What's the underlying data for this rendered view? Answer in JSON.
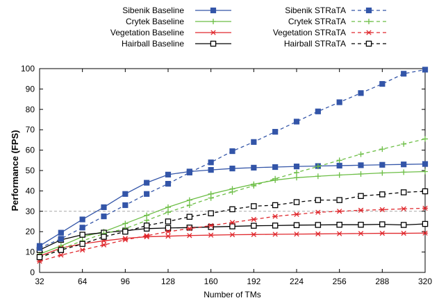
{
  "chart_data": {
    "type": "line",
    "title": "",
    "xlabel": "Number of TMs",
    "ylabel": "Performance (FPS)",
    "xlim": [
      32,
      320
    ],
    "ylim": [
      0,
      100
    ],
    "x_ticks": [
      32,
      64,
      96,
      128,
      160,
      192,
      224,
      256,
      288,
      320
    ],
    "y_ticks": [
      0,
      10,
      20,
      30,
      40,
      50,
      60,
      70,
      80,
      90,
      100
    ],
    "reference_line_y": 30,
    "legend_placement": "top, above plot, two columns",
    "x": [
      32,
      48,
      64,
      80,
      96,
      112,
      128,
      144,
      160,
      176,
      192,
      208,
      224,
      240,
      256,
      272,
      288,
      304,
      320
    ],
    "series": [
      {
        "name": "Sibenik Baseline",
        "color": "#3355a8",
        "style": "solid",
        "marker": "square-filled",
        "values": [
          13,
          19.5,
          26,
          32,
          38.5,
          44,
          48,
          49.5,
          50.3,
          51,
          51.4,
          51.7,
          52,
          52.2,
          52.4,
          52.6,
          52.8,
          53,
          53.2
        ]
      },
      {
        "name": "Crytek Baseline",
        "color": "#6cbe45",
        "style": "solid",
        "marker": "plus",
        "values": [
          9,
          13,
          17.5,
          20,
          24,
          28,
          32,
          35.5,
          38.5,
          41,
          43.3,
          45.3,
          46.5,
          47.2,
          47.8,
          48.3,
          48.8,
          49.2,
          49.5
        ]
      },
      {
        "name": "Vegetation Baseline",
        "color": "#e0282d",
        "style": "solid",
        "marker": "asterisk",
        "values": [
          8,
          12,
          14,
          15.5,
          16.7,
          17.5,
          17.8,
          18.1,
          18.3,
          18.5,
          18.6,
          18.7,
          18.8,
          18.9,
          19,
          19.1,
          19.2,
          19.2,
          19.3
        ]
      },
      {
        "name": "Hairball Baseline",
        "color": "#000000",
        "style": "solid",
        "marker": "square-open",
        "values": [
          11,
          16,
          18.5,
          19.5,
          20.5,
          21.5,
          21.8,
          22,
          22.3,
          22.6,
          22.9,
          23,
          23.2,
          23.3,
          23.4,
          23.4,
          23.6,
          23.3,
          23.8
        ]
      },
      {
        "name": "Sibenik STRaTA",
        "color": "#3355a8",
        "style": "dashed",
        "marker": "square-filled",
        "values": [
          12,
          16.5,
          22,
          27.5,
          33,
          38.5,
          43.5,
          49,
          54,
          59.5,
          64,
          69,
          74,
          79,
          83.5,
          88,
          92.5,
          97.5,
          99.5
        ]
      },
      {
        "name": "Crytek STRaTA",
        "color": "#6cbe45",
        "style": "dashed",
        "marker": "plus",
        "values": [
          7,
          11.5,
          15.5,
          19,
          21.5,
          25.5,
          29.5,
          33,
          36.5,
          39.5,
          42.5,
          46,
          49,
          52,
          55,
          58,
          60.5,
          63,
          65.5
        ]
      },
      {
        "name": "Vegetation STRaTA",
        "color": "#e0282d",
        "style": "dashed",
        "marker": "asterisk",
        "values": [
          5.5,
          8.5,
          11,
          13.5,
          16,
          18,
          20,
          21.5,
          23,
          24.5,
          26,
          27.5,
          28.5,
          29.5,
          30,
          30.5,
          30.8,
          31.2,
          31.5
        ]
      },
      {
        "name": "Hairball STRaTA",
        "color": "#000000",
        "style": "dashed",
        "marker": "square-open",
        "values": [
          7.5,
          11,
          14,
          17.5,
          20,
          23,
          25,
          27.3,
          29,
          31,
          32.5,
          33,
          34.5,
          35.5,
          35.5,
          37.5,
          38.3,
          39.3,
          39.8
        ]
      }
    ]
  }
}
